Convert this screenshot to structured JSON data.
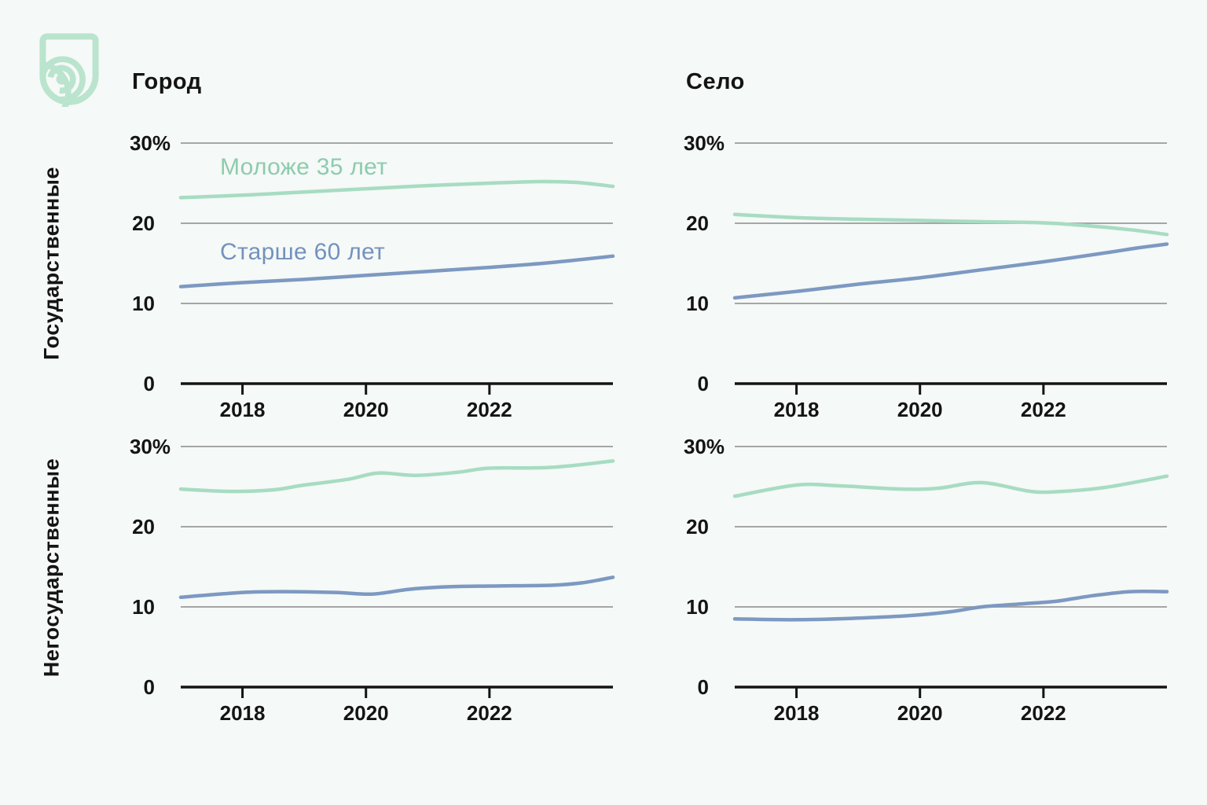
{
  "brand": {
    "logo": "shield-signal-logo",
    "color": "#bae4cd"
  },
  "columns": [
    {
      "label": "Город"
    },
    {
      "label": "Село"
    }
  ],
  "rows": [
    {
      "label": "Государственные"
    },
    {
      "label": "Негосударственные"
    }
  ],
  "legend": {
    "young": {
      "label": "Моложе 35 лет",
      "color": "#8ecbae"
    },
    "old": {
      "label": "Старше 60 лет",
      "color": "#7392bd"
    }
  },
  "styles": {
    "background": "#f5f9f7",
    "ink": "#141414",
    "grid": "#a6a6a6",
    "green_line": "#a7dcc2",
    "blue_line": "#7d99c2",
    "green_text": "#8ecbae",
    "blue_text": "#7392bd",
    "mint": "#bae4cd"
  },
  "chart_data": [
    {
      "type": "line",
      "row": "Государственные",
      "column": "Город",
      "x_range": [
        2017,
        2024
      ],
      "x_ticks": [
        2018,
        2020,
        2022
      ],
      "ylim": [
        0,
        30
      ],
      "grid": true,
      "legend_position": "inline-top-left",
      "y_ticks": [
        {
          "v": 0,
          "label": "0"
        },
        {
          "v": 10,
          "label": "10"
        },
        {
          "v": 20,
          "label": "20"
        },
        {
          "v": 30,
          "label": "30%"
        }
      ],
      "series": [
        {
          "name": "Моложе 35 лет",
          "color": "green",
          "x": [
            2017,
            2018,
            2019,
            2020,
            2021,
            2022,
            2022.8,
            2023.4,
            2024
          ],
          "y": [
            23.2,
            23.5,
            23.9,
            24.3,
            24.7,
            25.0,
            25.2,
            25.1,
            24.6
          ]
        },
        {
          "name": "Старше 60 лет",
          "color": "blue",
          "x": [
            2017,
            2018,
            2019,
            2020,
            2021,
            2022,
            2023,
            2024
          ],
          "y": [
            12.1,
            12.6,
            13.0,
            13.5,
            14.0,
            14.5,
            15.1,
            15.9
          ]
        }
      ]
    },
    {
      "type": "line",
      "row": "Государственные",
      "column": "Село",
      "x_range": [
        2017,
        2024
      ],
      "x_ticks": [
        2018,
        2020,
        2022
      ],
      "ylim": [
        0,
        30
      ],
      "grid": true,
      "y_ticks": [
        {
          "v": 0,
          "label": "0"
        },
        {
          "v": 10,
          "label": "10"
        },
        {
          "v": 20,
          "label": "20"
        },
        {
          "v": 30,
          "label": "30%"
        }
      ],
      "series": [
        {
          "name": "Моложе 35 лет",
          "color": "green",
          "x": [
            2017,
            2018,
            2019,
            2020,
            2021,
            2022,
            2022.7,
            2023.4,
            2024
          ],
          "y": [
            21.1,
            20.7,
            20.5,
            20.35,
            20.2,
            20.05,
            19.7,
            19.2,
            18.6
          ]
        },
        {
          "name": "Старше 60 лет",
          "color": "blue",
          "x": [
            2017,
            2018,
            2019,
            2020,
            2021,
            2022,
            2023,
            2023.5,
            2024
          ],
          "y": [
            10.7,
            11.5,
            12.4,
            13.2,
            14.2,
            15.2,
            16.3,
            16.9,
            17.4
          ]
        }
      ]
    },
    {
      "type": "line",
      "row": "Негосударственные",
      "column": "Город",
      "x_range": [
        2017,
        2024
      ],
      "x_ticks": [
        2018,
        2020,
        2022
      ],
      "ylim": [
        0,
        30
      ],
      "grid": true,
      "y_ticks": [
        {
          "v": 0,
          "label": "0"
        },
        {
          "v": 10,
          "label": "10"
        },
        {
          "v": 20,
          "label": "20"
        },
        {
          "v": 30,
          "label": "30%"
        }
      ],
      "series": [
        {
          "name": "Моложе 35 лет",
          "color": "green",
          "x": [
            2017,
            2017.8,
            2018.5,
            2019,
            2019.7,
            2020.2,
            2020.8,
            2021.5,
            2022,
            2023,
            2024
          ],
          "y": [
            24.7,
            24.4,
            24.6,
            25.2,
            25.9,
            26.7,
            26.4,
            26.8,
            27.3,
            27.4,
            28.2
          ]
        },
        {
          "name": "Старше 60 лет",
          "color": "blue",
          "x": [
            2017,
            2018,
            2018.7,
            2019.5,
            2020.1,
            2020.7,
            2021.3,
            2022,
            2023,
            2023.5,
            2024
          ],
          "y": [
            11.2,
            11.8,
            11.9,
            11.8,
            11.6,
            12.2,
            12.5,
            12.6,
            12.7,
            13.0,
            13.7
          ]
        }
      ]
    },
    {
      "type": "line",
      "row": "Негосударственные",
      "column": "Село",
      "x_range": [
        2017,
        2024
      ],
      "x_ticks": [
        2018,
        2020,
        2022
      ],
      "ylim": [
        0,
        30
      ],
      "grid": true,
      "y_ticks": [
        {
          "v": 0,
          "label": "0"
        },
        {
          "v": 10,
          "label": "10"
        },
        {
          "v": 20,
          "label": "20"
        },
        {
          "v": 30,
          "label": "30%"
        }
      ],
      "series": [
        {
          "name": "Моложе 35 лет",
          "color": "green",
          "x": [
            2017,
            2018,
            2018.7,
            2019.7,
            2020.3,
            2021,
            2021.8,
            2022.3,
            2023,
            2024
          ],
          "y": [
            23.8,
            25.2,
            25.1,
            24.7,
            24.8,
            25.5,
            24.4,
            24.4,
            24.9,
            26.3
          ]
        },
        {
          "name": "Старше 60 лет",
          "color": "blue",
          "x": [
            2017,
            2018,
            2019,
            2019.8,
            2020.5,
            2021,
            2021.7,
            2022.2,
            2022.8,
            2023.4,
            2024
          ],
          "y": [
            8.5,
            8.4,
            8.6,
            8.9,
            9.4,
            10.0,
            10.4,
            10.7,
            11.4,
            11.9,
            11.9
          ]
        }
      ]
    }
  ]
}
